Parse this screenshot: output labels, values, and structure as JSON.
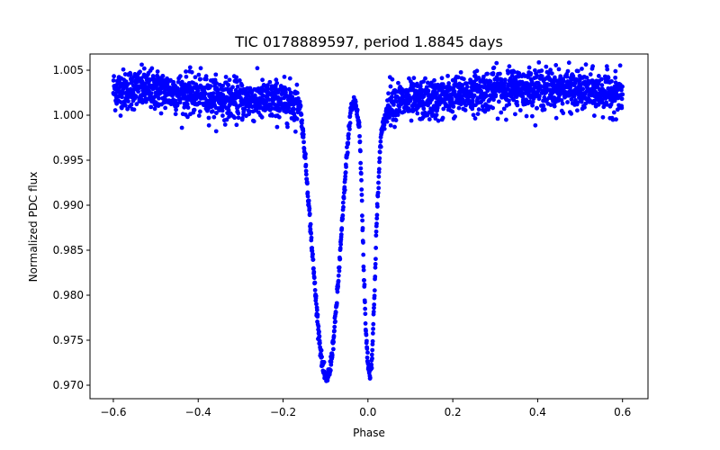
{
  "chart_data": {
    "type": "scatter",
    "title": "TIC 0178889597, period 1.8845 days",
    "xlabel": "Phase",
    "ylabel": "Normalized PDC flux",
    "xlim": [
      -0.655,
      0.66
    ],
    "ylim": [
      0.9685,
      1.0068
    ],
    "xticks": [
      -0.6,
      -0.4,
      -0.2,
      0.0,
      0.2,
      0.4,
      0.6
    ],
    "xtick_labels": [
      "−0.6",
      "−0.4",
      "−0.2",
      "0.0",
      "0.2",
      "0.4",
      "0.6"
    ],
    "yticks": [
      0.97,
      0.975,
      0.98,
      0.985,
      0.99,
      0.995,
      1.0,
      1.005
    ],
    "ytick_labels": [
      "0.970",
      "0.975",
      "0.980",
      "0.985",
      "0.990",
      "0.995",
      "1.000",
      "1.005"
    ],
    "grid": false,
    "marker_color": "#0000ff",
    "series": [
      {
        "name": "",
        "description_points": {
          "x": [
            -0.6,
            -0.55,
            -0.5,
            -0.45,
            -0.4,
            -0.35,
            -0.3,
            -0.25,
            -0.2,
            -0.16,
            -0.15,
            -0.14,
            -0.13,
            -0.12,
            -0.11,
            -0.1,
            -0.09,
            -0.08,
            -0.07,
            -0.06,
            -0.05,
            -0.04,
            -0.03,
            -0.02,
            -0.015,
            -0.01,
            -0.005,
            0.0,
            0.005,
            0.01,
            0.015,
            0.02,
            0.03,
            0.05,
            0.1,
            0.15,
            0.2,
            0.25,
            0.3,
            0.35,
            0.4,
            0.45,
            0.5,
            0.55,
            0.6
          ],
          "y": [
            1.0028,
            1.0029,
            1.0028,
            1.0025,
            1.0022,
            1.0019,
            1.0017,
            1.0016,
            1.0016,
            1.0012,
            0.9965,
            0.9905,
            0.984,
            0.978,
            0.973,
            0.9705,
            0.9715,
            0.9755,
            0.9815,
            0.9885,
            0.9955,
            1.0008,
            1.0015,
            0.9985,
            0.992,
            0.983,
            0.976,
            0.9725,
            0.9712,
            0.9735,
            0.9795,
            0.9875,
            0.9975,
            1.0016,
            1.0015,
            1.0017,
            1.0021,
            1.0025,
            1.0029,
            1.003,
            1.003,
            1.0029,
            1.0027,
            1.0025,
            1.0023
          ]
        }
      }
    ]
  }
}
